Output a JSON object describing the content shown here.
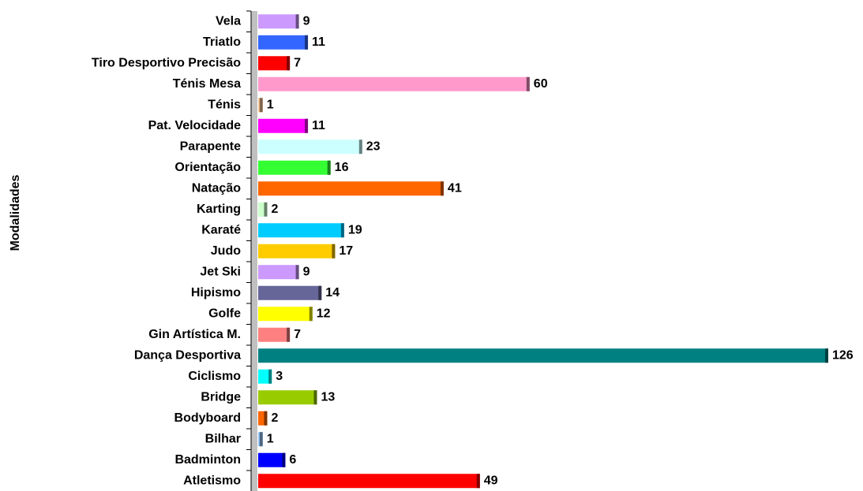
{
  "chart_data": {
    "type": "bar",
    "orientation": "horizontal",
    "y_label": "Modalidades",
    "categories": [
      "Vela",
      "Triatlo",
      "Tiro Desportivo Precisão",
      "Ténis Mesa",
      "Ténis",
      "Pat. Velocidade",
      "Parapente",
      "Orientação",
      "Natação",
      "Karting",
      "Karaté",
      "Judo",
      "Jet Ski",
      "Hipismo",
      "Golfe",
      "Gin Artística M.",
      "Dança Desportiva",
      "Ciclismo",
      "Bridge",
      "Bodyboard",
      "Bilhar",
      "Badminton",
      "Atletismo"
    ],
    "values": [
      9,
      11,
      7,
      60,
      1,
      11,
      23,
      16,
      41,
      2,
      19,
      17,
      9,
      14,
      12,
      7,
      126,
      3,
      13,
      2,
      1,
      6,
      49
    ],
    "colors": [
      "#cc99ff",
      "#3366ff",
      "#ff0000",
      "#ff99cc",
      "#ffcc99",
      "#ff00ff",
      "#ccffff",
      "#33ff33",
      "#ff6600",
      "#ccffcc",
      "#00ccff",
      "#ffcc00",
      "#cc99ff",
      "#666699",
      "#ffff00",
      "#ff8080",
      "#008080",
      "#00ffff",
      "#99cc00",
      "#ff6600",
      "#99ccff",
      "#0000ff",
      "#ff0000"
    ]
  }
}
